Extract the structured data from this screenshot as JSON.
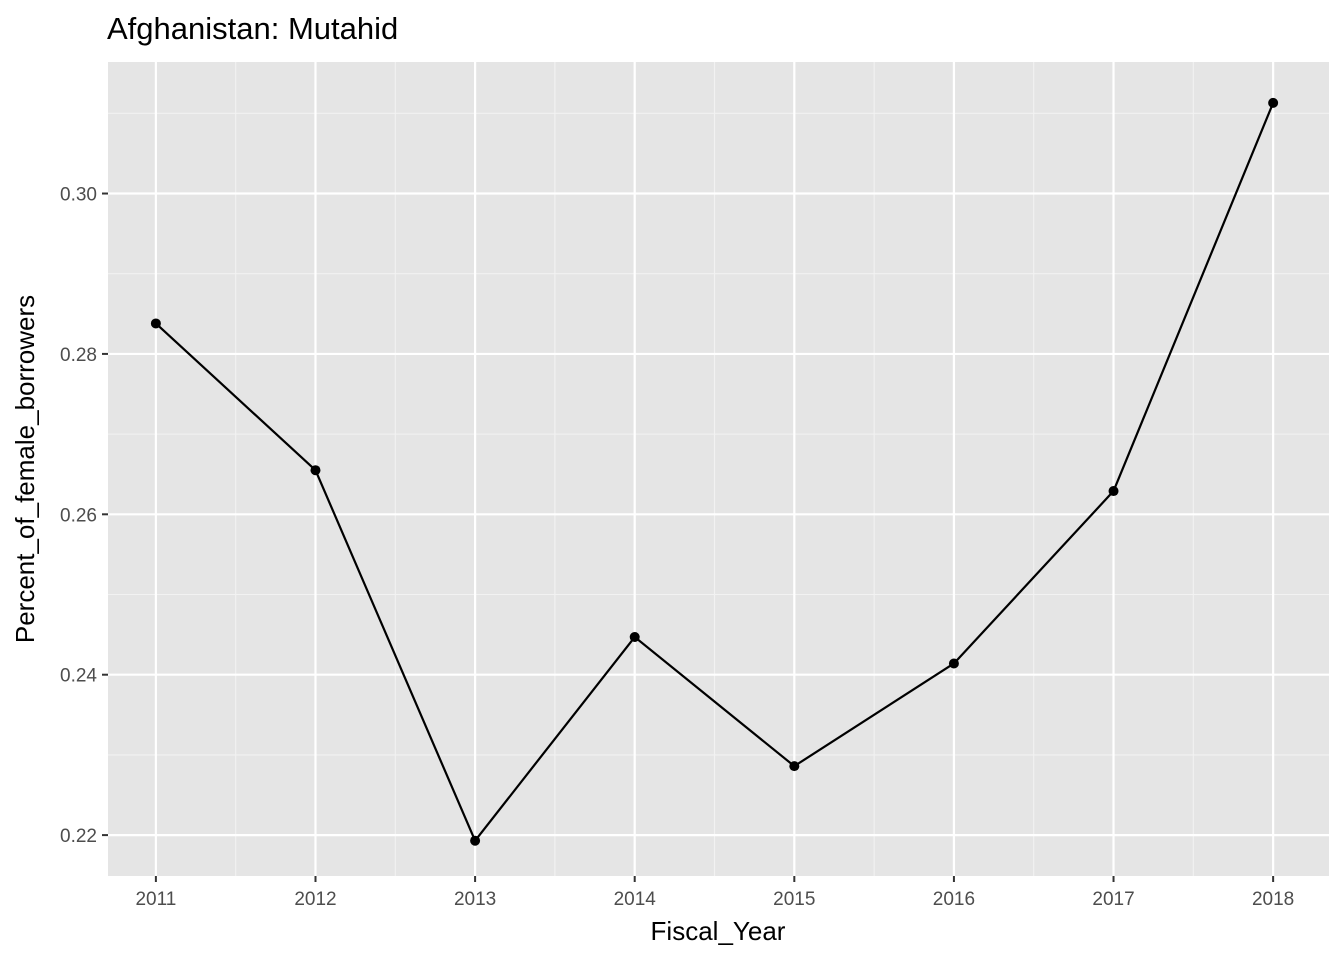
{
  "chart_data": {
    "type": "line",
    "title": "Afghanistan:  Mutahid",
    "xlabel": "Fiscal_Year",
    "ylabel": "Percent_of_female_borrowers",
    "x": [
      2011,
      2012,
      2013,
      2014,
      2015,
      2016,
      2017,
      2018
    ],
    "series": [
      {
        "values": [
          0.2838,
          0.2655,
          0.2193,
          0.2447,
          0.2286,
          0.2414,
          0.2629,
          0.3113
        ]
      }
    ],
    "xlim": [
      2010.7,
      2018.35
    ],
    "ylim": [
      0.2149,
      0.3164
    ],
    "x_ticks": [
      "2011",
      "2012",
      "2013",
      "2014",
      "2015",
      "2016",
      "2017",
      "2018"
    ],
    "y_ticks": [
      "0.22",
      "0.24",
      "0.26",
      "0.28",
      "0.30"
    ],
    "y_tick_values": [
      0.22,
      0.24,
      0.26,
      0.28,
      0.3
    ],
    "grid": true,
    "legend": "none",
    "colors": {
      "panel_background": "#e5e5e5",
      "grid_major": "#ffffff",
      "grid_minor": "#f2f2f2",
      "line": "#000000",
      "point": "#000000"
    }
  }
}
